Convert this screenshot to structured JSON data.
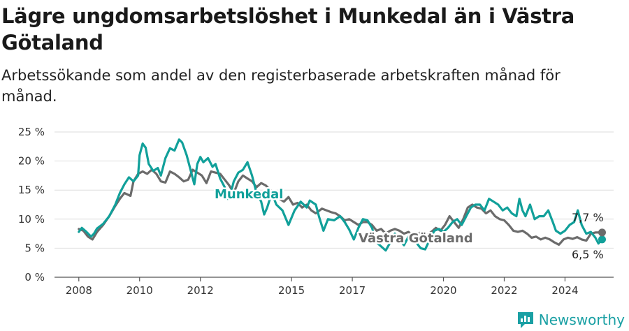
{
  "chart_data": {
    "type": "line",
    "title": "Lägre ungdomsarbetslöshet i Munkedal än i Västra Götaland",
    "subtitle": "Arbetssökande som andel av den registerbaserade arbetskraften månad för månad.",
    "y_ticks": [
      "0 %",
      "5 %",
      "10 %",
      "15 %",
      "20 %",
      "25 %"
    ],
    "ylim": [
      0,
      25
    ],
    "x_ticks": [
      "2008",
      "2010",
      "2012",
      "2015",
      "2017",
      "2020",
      "2022",
      "2024"
    ],
    "x_tick_values": [
      2008,
      2010,
      2012,
      2015,
      2017,
      2020,
      2022,
      2024
    ],
    "xlim": [
      2007.2,
      2025.6
    ],
    "series": [
      {
        "name": "Munkedal",
        "color": "#11a09a",
        "end_label": "6,5 %",
        "points": [
          [
            2008.0,
            7.8
          ],
          [
            2008.1,
            8.5
          ],
          [
            2008.25,
            7.8
          ],
          [
            2008.4,
            7.0
          ],
          [
            2008.5,
            7.5
          ],
          [
            2008.6,
            8.4
          ],
          [
            2008.8,
            9.2
          ],
          [
            2009.0,
            10.5
          ],
          [
            2009.2,
            12.5
          ],
          [
            2009.35,
            14.5
          ],
          [
            2009.5,
            16.0
          ],
          [
            2009.65,
            17.2
          ],
          [
            2009.8,
            16.5
          ],
          [
            2009.95,
            17.5
          ],
          [
            2010.0,
            21.0
          ],
          [
            2010.1,
            23.0
          ],
          [
            2010.2,
            22.3
          ],
          [
            2010.3,
            19.5
          ],
          [
            2010.45,
            18.3
          ],
          [
            2010.6,
            18.8
          ],
          [
            2010.7,
            17.5
          ],
          [
            2010.85,
            20.5
          ],
          [
            2011.0,
            22.2
          ],
          [
            2011.15,
            21.8
          ],
          [
            2011.3,
            23.7
          ],
          [
            2011.4,
            23.2
          ],
          [
            2011.55,
            21.0
          ],
          [
            2011.7,
            18.0
          ],
          [
            2011.8,
            16.0
          ],
          [
            2011.9,
            19.5
          ],
          [
            2012.0,
            20.7
          ],
          [
            2012.1,
            19.8
          ],
          [
            2012.25,
            20.5
          ],
          [
            2012.4,
            19.0
          ],
          [
            2012.5,
            19.5
          ],
          [
            2012.65,
            17.0
          ],
          [
            2012.8,
            15.5
          ],
          [
            2012.9,
            13.5
          ],
          [
            2013.0,
            14.5
          ],
          [
            2013.1,
            16.5
          ],
          [
            2013.25,
            18.0
          ],
          [
            2013.4,
            18.5
          ],
          [
            2013.55,
            19.8
          ],
          [
            2013.7,
            17.5
          ],
          [
            2013.85,
            14.5
          ],
          [
            2014.0,
            13.0
          ],
          [
            2014.1,
            10.8
          ],
          [
            2014.2,
            12.0
          ],
          [
            2014.35,
            14.5
          ],
          [
            2014.5,
            12.5
          ],
          [
            2014.7,
            11.5
          ],
          [
            2014.9,
            9.0
          ],
          [
            2015.1,
            11.5
          ],
          [
            2015.3,
            13.0
          ],
          [
            2015.5,
            12.0
          ],
          [
            2015.6,
            13.2
          ],
          [
            2015.8,
            12.5
          ],
          [
            2015.9,
            10.5
          ],
          [
            2016.05,
            8.0
          ],
          [
            2016.2,
            10.0
          ],
          [
            2016.4,
            9.8
          ],
          [
            2016.6,
            10.5
          ],
          [
            2016.75,
            9.5
          ],
          [
            2016.9,
            8.2
          ],
          [
            2017.05,
            6.5
          ],
          [
            2017.2,
            8.5
          ],
          [
            2017.35,
            10.0
          ],
          [
            2017.5,
            9.8
          ],
          [
            2017.65,
            8.5
          ],
          [
            2017.8,
            6.0
          ],
          [
            2017.95,
            5.3
          ],
          [
            2018.1,
            4.6
          ],
          [
            2018.25,
            6.0
          ],
          [
            2018.4,
            7.5
          ],
          [
            2018.55,
            6.5
          ],
          [
            2018.7,
            5.5
          ],
          [
            2018.85,
            7.0
          ],
          [
            2019.0,
            7.5
          ],
          [
            2019.1,
            6.0
          ],
          [
            2019.25,
            5.0
          ],
          [
            2019.4,
            4.8
          ],
          [
            2019.55,
            6.5
          ],
          [
            2019.7,
            8.0
          ],
          [
            2019.85,
            8.3
          ],
          [
            2020.0,
            7.8
          ],
          [
            2020.15,
            8.5
          ],
          [
            2020.3,
            9.5
          ],
          [
            2020.45,
            10.0
          ],
          [
            2020.6,
            9.0
          ],
          [
            2020.75,
            10.5
          ],
          [
            2020.9,
            12.0
          ],
          [
            2021.05,
            12.5
          ],
          [
            2021.2,
            12.5
          ],
          [
            2021.35,
            11.5
          ],
          [
            2021.5,
            13.5
          ],
          [
            2021.65,
            13.0
          ],
          [
            2021.8,
            12.5
          ],
          [
            2021.95,
            11.5
          ],
          [
            2022.1,
            12.0
          ],
          [
            2022.25,
            11.0
          ],
          [
            2022.4,
            10.5
          ],
          [
            2022.5,
            13.5
          ],
          [
            2022.6,
            11.5
          ],
          [
            2022.7,
            10.5
          ],
          [
            2022.85,
            12.5
          ],
          [
            2023.0,
            10.0
          ],
          [
            2023.15,
            10.5
          ],
          [
            2023.3,
            10.5
          ],
          [
            2023.45,
            11.5
          ],
          [
            2023.6,
            9.5
          ],
          [
            2023.7,
            8.0
          ],
          [
            2023.85,
            7.5
          ],
          [
            2024.0,
            8.0
          ],
          [
            2024.15,
            9.0
          ],
          [
            2024.3,
            9.5
          ],
          [
            2024.42,
            11.5
          ],
          [
            2024.55,
            9.0
          ],
          [
            2024.7,
            7.5
          ],
          [
            2024.85,
            7.8
          ],
          [
            2025.0,
            6.8
          ],
          [
            2025.1,
            5.8
          ],
          [
            2025.22,
            6.5
          ]
        ]
      },
      {
        "name": "Västra Götaland",
        "color": "#6b6b6b",
        "end_label": "7,7 %",
        "points": [
          [
            2008.0,
            8.3
          ],
          [
            2008.15,
            8.0
          ],
          [
            2008.3,
            7.0
          ],
          [
            2008.45,
            6.5
          ],
          [
            2008.6,
            7.8
          ],
          [
            2008.8,
            9.0
          ],
          [
            2009.0,
            10.5
          ],
          [
            2009.2,
            12.3
          ],
          [
            2009.35,
            13.5
          ],
          [
            2009.5,
            14.5
          ],
          [
            2009.7,
            14.0
          ],
          [
            2009.8,
            16.5
          ],
          [
            2009.95,
            17.8
          ],
          [
            2010.1,
            18.2
          ],
          [
            2010.25,
            17.8
          ],
          [
            2010.4,
            18.5
          ],
          [
            2010.55,
            17.8
          ],
          [
            2010.7,
            16.5
          ],
          [
            2010.85,
            16.3
          ],
          [
            2011.0,
            18.2
          ],
          [
            2011.15,
            17.8
          ],
          [
            2011.3,
            17.2
          ],
          [
            2011.45,
            16.5
          ],
          [
            2011.6,
            16.8
          ],
          [
            2011.75,
            18.5
          ],
          [
            2011.9,
            18.0
          ],
          [
            2012.05,
            17.5
          ],
          [
            2012.2,
            16.2
          ],
          [
            2012.35,
            18.2
          ],
          [
            2012.5,
            18.0
          ],
          [
            2012.65,
            17.8
          ],
          [
            2012.8,
            16.8
          ],
          [
            2012.95,
            15.8
          ],
          [
            2013.1,
            14.5
          ],
          [
            2013.25,
            16.5
          ],
          [
            2013.4,
            17.5
          ],
          [
            2013.55,
            17.0
          ],
          [
            2013.7,
            16.5
          ],
          [
            2013.85,
            15.5
          ],
          [
            2014.0,
            16.2
          ],
          [
            2014.15,
            15.8
          ],
          [
            2014.3,
            15.0
          ],
          [
            2014.45,
            14.2
          ],
          [
            2014.6,
            13.5
          ],
          [
            2014.75,
            13.0
          ],
          [
            2014.9,
            13.8
          ],
          [
            2015.05,
            12.5
          ],
          [
            2015.2,
            12.8
          ],
          [
            2015.35,
            12.0
          ],
          [
            2015.5,
            12.5
          ],
          [
            2015.65,
            11.5
          ],
          [
            2015.8,
            11.0
          ],
          [
            2016.0,
            11.8
          ],
          [
            2016.15,
            11.5
          ],
          [
            2016.3,
            11.2
          ],
          [
            2016.45,
            11.0
          ],
          [
            2016.6,
            10.5
          ],
          [
            2016.75,
            9.8
          ],
          [
            2016.9,
            10.0
          ],
          [
            2017.05,
            9.5
          ],
          [
            2017.2,
            9.0
          ],
          [
            2017.35,
            9.5
          ],
          [
            2017.5,
            9.5
          ],
          [
            2017.65,
            9.0
          ],
          [
            2017.8,
            8.0
          ],
          [
            2017.95,
            8.3
          ],
          [
            2018.1,
            7.5
          ],
          [
            2018.25,
            8.0
          ],
          [
            2018.4,
            8.3
          ],
          [
            2018.55,
            8.0
          ],
          [
            2018.7,
            7.5
          ],
          [
            2018.85,
            7.8
          ],
          [
            2019.0,
            7.2
          ],
          [
            2019.15,
            7.5
          ],
          [
            2019.3,
            7.8
          ],
          [
            2019.45,
            7.3
          ],
          [
            2019.6,
            7.8
          ],
          [
            2019.75,
            8.5
          ],
          [
            2019.9,
            8.0
          ],
          [
            2020.05,
            9.0
          ],
          [
            2020.2,
            10.5
          ],
          [
            2020.35,
            9.5
          ],
          [
            2020.5,
            8.5
          ],
          [
            2020.65,
            10.0
          ],
          [
            2020.8,
            12.0
          ],
          [
            2020.95,
            12.5
          ],
          [
            2021.1,
            12.0
          ],
          [
            2021.25,
            11.8
          ],
          [
            2021.4,
            11.0
          ],
          [
            2021.55,
            11.5
          ],
          [
            2021.7,
            10.5
          ],
          [
            2021.85,
            10.0
          ],
          [
            2022.0,
            9.8
          ],
          [
            2022.15,
            9.0
          ],
          [
            2022.3,
            8.0
          ],
          [
            2022.45,
            7.8
          ],
          [
            2022.6,
            8.0
          ],
          [
            2022.75,
            7.5
          ],
          [
            2022.9,
            6.8
          ],
          [
            2023.05,
            7.0
          ],
          [
            2023.2,
            6.5
          ],
          [
            2023.35,
            6.8
          ],
          [
            2023.5,
            6.5
          ],
          [
            2023.65,
            6.0
          ],
          [
            2023.8,
            5.6
          ],
          [
            2023.95,
            6.5
          ],
          [
            2024.1,
            6.8
          ],
          [
            2024.25,
            6.6
          ],
          [
            2024.4,
            6.9
          ],
          [
            2024.55,
            6.5
          ],
          [
            2024.7,
            6.3
          ],
          [
            2024.85,
            7.5
          ],
          [
            2025.0,
            7.7
          ],
          [
            2025.22,
            7.7
          ]
        ]
      }
    ]
  },
  "brand": {
    "name": "Newsworthy",
    "color": "#1aa0a4"
  }
}
